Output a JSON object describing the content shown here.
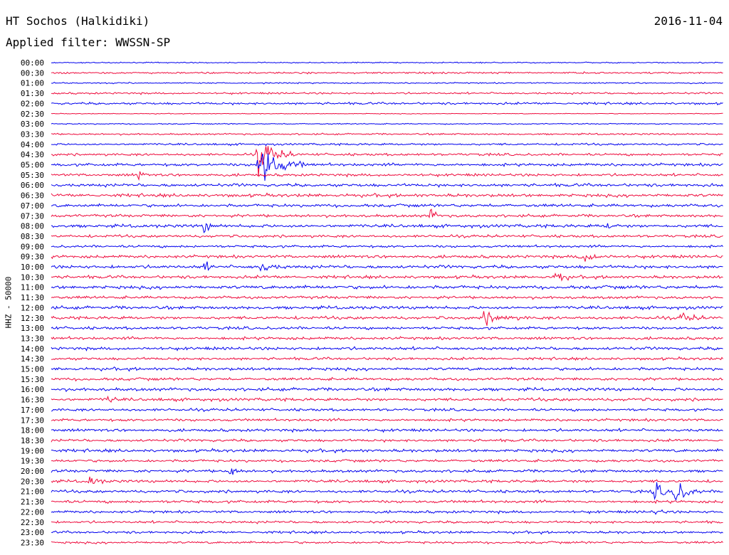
{
  "header": {
    "title": "HT Sochos (Halkidiki)",
    "filter": "Applied filter: WWSSN-SP",
    "date": "2016-11-04"
  },
  "chart_data": {
    "type": "line",
    "title": "HT Sochos (Halkidiki)",
    "subtitle": "Applied filter: WWSSN-SP",
    "ylabel": "HHZ - 50000",
    "xlabel": "",
    "line_times": [
      "00:00",
      "00:30",
      "01:00",
      "01:30",
      "02:00",
      "02:30",
      "03:00",
      "03:30",
      "04:00",
      "04:30",
      "05:00",
      "05:30",
      "06:00",
      "06:30",
      "07:00",
      "07:30",
      "08:00",
      "08:30",
      "09:00",
      "09:30",
      "10:00",
      "10:30",
      "11:00",
      "11:30",
      "12:00",
      "12:30",
      "13:00",
      "13:30",
      "14:00",
      "14:30",
      "15:00",
      "15:30",
      "16:00",
      "16:30",
      "17:00",
      "17:30",
      "18:00",
      "18:30",
      "19:00",
      "19:30",
      "20:00",
      "20:30",
      "21:00",
      "21:30",
      "22:00",
      "22:30",
      "23:00",
      "23:30"
    ],
    "line_colors": [
      "#0000ee",
      "#ee0a3c"
    ],
    "line_minutes": 30,
    "noise_levels": [
      0.6,
      1.0,
      0.7,
      1.0,
      1.2,
      0.4,
      0.6,
      0.9,
      1.1,
      1.3,
      1.5,
      1.4,
      1.6,
      1.7,
      1.6,
      1.5,
      1.7,
      1.4,
      1.3,
      1.6,
      1.7,
      1.6,
      1.8,
      1.5,
      1.7,
      1.6,
      1.5,
      1.5,
      1.6,
      1.4,
      1.6,
      1.5,
      1.7,
      1.6,
      1.4,
      1.4,
      1.5,
      1.4,
      1.6,
      1.4,
      1.5,
      1.5,
      1.5,
      1.5,
      1.4,
      1.3,
      1.3,
      1.2
    ],
    "events": [
      {
        "line": "04:30",
        "minute": 9.2,
        "amplitude": 22,
        "duration_min": 1.8
      },
      {
        "line": "05:00",
        "minute": 9.2,
        "amplitude": 28,
        "duration_min": 2.2
      },
      {
        "line": "05:30",
        "minute": 3.9,
        "amplitude": 7,
        "duration_min": 0.4
      },
      {
        "line": "07:30",
        "minute": 16.9,
        "amplitude": 10,
        "duration_min": 0.6
      },
      {
        "line": "08:00",
        "minute": 6.8,
        "amplitude": 9,
        "duration_min": 0.7
      },
      {
        "line": "08:00",
        "minute": 24.8,
        "amplitude": 8,
        "duration_min": 0.5
      },
      {
        "line": "09:30",
        "minute": 23.6,
        "amplitude": 8,
        "duration_min": 1.5
      },
      {
        "line": "10:00",
        "minute": 6.8,
        "amplitude": 8,
        "duration_min": 0.5
      },
      {
        "line": "10:00",
        "minute": 9.3,
        "amplitude": 7,
        "duration_min": 1.2
      },
      {
        "line": "10:30",
        "minute": 22.5,
        "amplitude": 9,
        "duration_min": 0.8
      },
      {
        "line": "12:30",
        "minute": 19.3,
        "amplitude": 7,
        "duration_min": 2.0
      },
      {
        "line": "12:30",
        "minute": 28.1,
        "amplitude": 7,
        "duration_min": 1.2
      },
      {
        "line": "16:30",
        "minute": 2.5,
        "amplitude": 8,
        "duration_min": 0.5
      },
      {
        "line": "20:00",
        "minute": 8.0,
        "amplitude": 10,
        "duration_min": 0.5
      },
      {
        "line": "20:30",
        "minute": 1.7,
        "amplitude": 8,
        "duration_min": 0.8
      },
      {
        "line": "21:00",
        "minute": 26.9,
        "amplitude": 13,
        "duration_min": 1.0
      },
      {
        "line": "21:00",
        "minute": 27.8,
        "amplitude": 18,
        "duration_min": 1.2
      },
      {
        "line": "22:00",
        "minute": 26.9,
        "amplitude": 6,
        "duration_min": 0.6
      }
    ]
  }
}
